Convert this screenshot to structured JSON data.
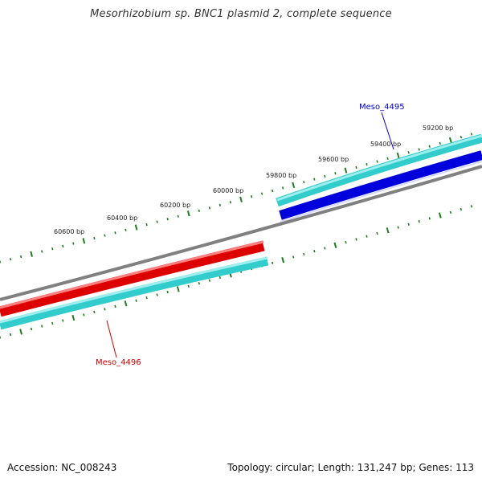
{
  "title": "Mesorhizobium sp. BNC1 plasmid 2, complete sequence",
  "footer": {
    "accession": "Accession: NC_008243",
    "topology": "Topology: circular; Length: 131,247 bp; Genes: 113"
  },
  "colors": {
    "backbone": "#808080",
    "tick": "#1e7d1e",
    "forward_gene": "#0000dd",
    "reverse_gene": "#dd0000",
    "cds": "#33cccc",
    "forward_label": "#0000cc",
    "reverse_label": "#cc0000"
  },
  "ruler": {
    "labels": [
      "59200 bp",
      "59400 bp",
      "59600 bp",
      "59800 bp",
      "60000 bp",
      "60200 bp",
      "60400 bp",
      "60600 bp"
    ]
  },
  "genes": [
    {
      "name": "Meso_4495",
      "strand": "forward"
    },
    {
      "name": "Meso_4496",
      "strand": "reverse"
    }
  ]
}
